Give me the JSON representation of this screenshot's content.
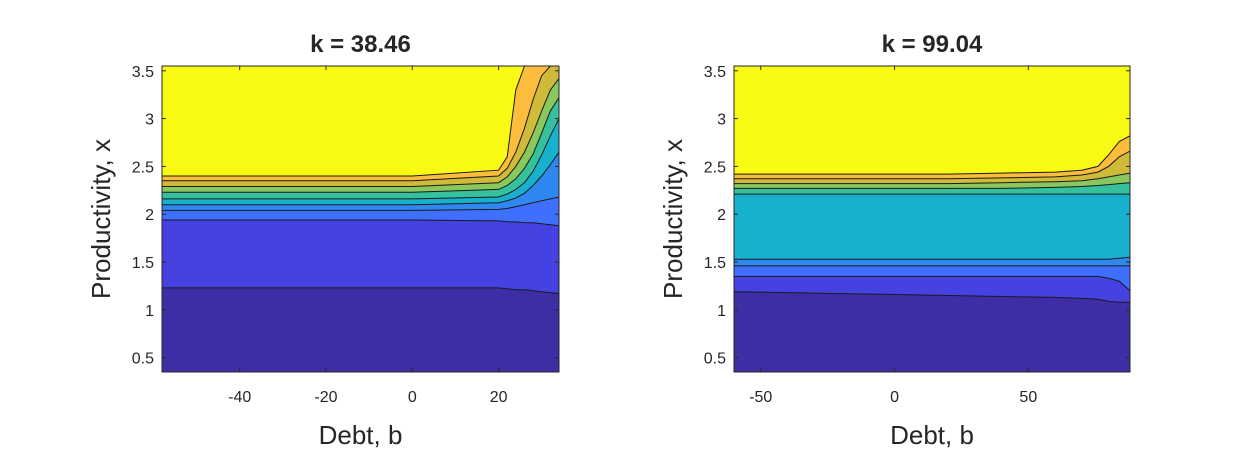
{
  "chart_data": [
    {
      "type": "contour",
      "title": "k = 38.46",
      "xlabel": "Debt, b",
      "ylabel": "Productivity, x",
      "xlim": [
        -58,
        34
      ],
      "ylim": [
        0.35,
        3.55
      ],
      "xticks": [
        -40,
        -20,
        0,
        20
      ],
      "yticks": [
        0.5,
        1,
        1.5,
        2,
        2.5,
        3,
        3.5
      ],
      "grid": false,
      "legend": "none",
      "x": [
        -58,
        -40,
        -20,
        0,
        20,
        22,
        24,
        26,
        28,
        30,
        32,
        34
      ],
      "bands": [
        {
          "color": "#3d2ea6",
          "upper": [
            1.23,
            1.23,
            1.23,
            1.23,
            1.23,
            1.22,
            1.21,
            1.21,
            1.2,
            1.19,
            1.18,
            1.17
          ]
        },
        {
          "color": "#4641e1",
          "upper": [
            1.94,
            1.94,
            1.94,
            1.94,
            1.93,
            1.92,
            1.92,
            1.91,
            1.91,
            1.9,
            1.89,
            1.88
          ]
        },
        {
          "color": "#3e6ffe",
          "upper": [
            2.04,
            2.04,
            2.04,
            2.04,
            2.05,
            2.06,
            2.08,
            2.1,
            2.12,
            2.14,
            2.16,
            2.18
          ]
        },
        {
          "color": "#2e88f0",
          "upper": [
            2.1,
            2.1,
            2.1,
            2.1,
            2.12,
            2.14,
            2.17,
            2.22,
            2.3,
            2.4,
            2.52,
            2.65
          ]
        },
        {
          "color": "#17b1ce",
          "upper": [
            2.16,
            2.16,
            2.16,
            2.16,
            2.18,
            2.21,
            2.26,
            2.33,
            2.45,
            2.62,
            2.82,
            3.0
          ]
        },
        {
          "color": "#35c09e",
          "upper": [
            2.23,
            2.23,
            2.23,
            2.23,
            2.26,
            2.3,
            2.37,
            2.48,
            2.63,
            2.85,
            3.08,
            3.22
          ]
        },
        {
          "color": "#88c85d",
          "upper": [
            2.29,
            2.29,
            2.29,
            2.29,
            2.33,
            2.39,
            2.5,
            2.65,
            2.85,
            3.08,
            3.3,
            3.42
          ]
        },
        {
          "color": "#cfba39",
          "upper": [
            2.35,
            2.35,
            2.35,
            2.35,
            2.4,
            2.48,
            2.65,
            2.9,
            3.2,
            3.45,
            3.55,
            3.55
          ]
        },
        {
          "color": "#fcbd3d",
          "upper": [
            2.4,
            2.4,
            2.4,
            2.4,
            2.46,
            2.6,
            3.3,
            3.55,
            3.55,
            3.55,
            3.55,
            3.55
          ]
        },
        {
          "color": "#f8fa14",
          "upper": [
            3.55,
            3.55,
            3.55,
            3.55,
            3.55,
            3.55,
            3.55,
            3.55,
            3.55,
            3.55,
            3.55,
            3.55
          ]
        }
      ]
    },
    {
      "type": "contour",
      "title": "k = 99.04",
      "xlabel": "Debt, b",
      "ylabel": "Productivity, x",
      "xlim": [
        -60,
        88
      ],
      "ylim": [
        0.35,
        3.55
      ],
      "xticks": [
        -50,
        0,
        50
      ],
      "yticks": [
        0.5,
        1,
        1.5,
        2,
        2.5,
        3,
        3.5
      ],
      "grid": false,
      "legend": "none",
      "x": [
        -60,
        -40,
        -20,
        0,
        20,
        40,
        60,
        70,
        76,
        80,
        84,
        88
      ],
      "bands": [
        {
          "color": "#3d2ea6",
          "upper": [
            1.19,
            1.18,
            1.17,
            1.16,
            1.15,
            1.14,
            1.13,
            1.12,
            1.11,
            1.09,
            1.08,
            1.08
          ]
        },
        {
          "color": "#4641e1",
          "upper": [
            1.35,
            1.35,
            1.35,
            1.35,
            1.35,
            1.35,
            1.35,
            1.35,
            1.35,
            1.33,
            1.3,
            1.2
          ]
        },
        {
          "color": "#3e6ffe",
          "upper": [
            1.46,
            1.46,
            1.46,
            1.46,
            1.46,
            1.46,
            1.46,
            1.46,
            1.46,
            1.46,
            1.46,
            1.46
          ]
        },
        {
          "color": "#2e88f0",
          "upper": [
            1.53,
            1.53,
            1.53,
            1.53,
            1.53,
            1.53,
            1.53,
            1.53,
            1.53,
            1.53,
            1.54,
            1.55
          ]
        },
        {
          "color": "#17b1ce",
          "upper": [
            2.21,
            2.21,
            2.21,
            2.21,
            2.21,
            2.21,
            2.21,
            2.21,
            2.21,
            2.21,
            2.21,
            2.21
          ]
        },
        {
          "color": "#35c09e",
          "upper": [
            2.27,
            2.27,
            2.27,
            2.27,
            2.27,
            2.27,
            2.28,
            2.29,
            2.3,
            2.31,
            2.32,
            2.33
          ]
        },
        {
          "color": "#88c85d",
          "upper": [
            2.32,
            2.32,
            2.32,
            2.32,
            2.32,
            2.33,
            2.34,
            2.35,
            2.37,
            2.39,
            2.41,
            2.43
          ]
        },
        {
          "color": "#cfba39",
          "upper": [
            2.37,
            2.37,
            2.37,
            2.37,
            2.37,
            2.38,
            2.39,
            2.41,
            2.44,
            2.5,
            2.6,
            2.66
          ]
        },
        {
          "color": "#fcbd3d",
          "upper": [
            2.42,
            2.42,
            2.42,
            2.42,
            2.42,
            2.43,
            2.44,
            2.46,
            2.5,
            2.62,
            2.76,
            2.82
          ]
        },
        {
          "color": "#f8fa14",
          "upper": [
            3.55,
            3.55,
            3.55,
            3.55,
            3.55,
            3.55,
            3.55,
            3.55,
            3.55,
            3.55,
            3.55,
            3.55
          ]
        }
      ]
    }
  ]
}
